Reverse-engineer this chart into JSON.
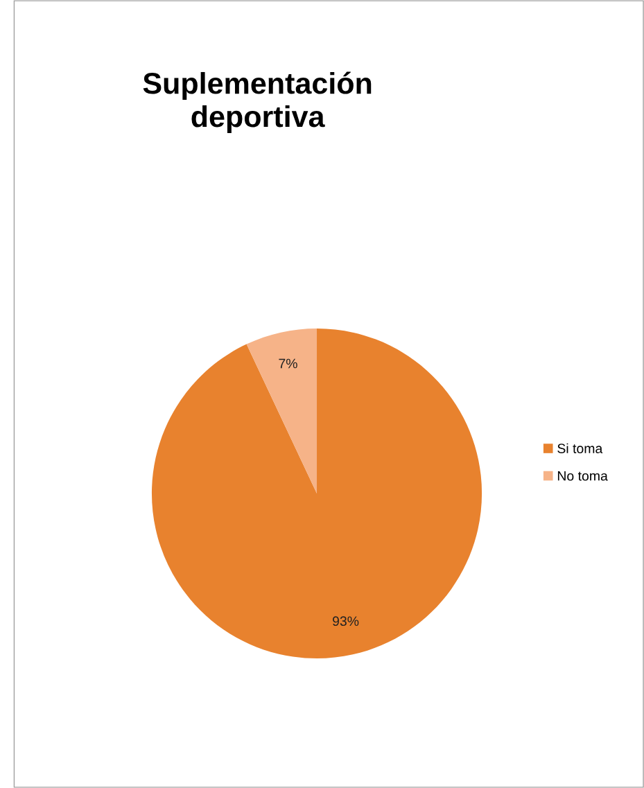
{
  "chart_data": {
    "type": "pie",
    "title": "Suplementación\ndeportiva",
    "categories": [
      "Si toma",
      "No toma"
    ],
    "values": [
      93,
      7
    ],
    "value_labels": [
      "93%",
      "7%"
    ],
    "colors": [
      "#e8822e",
      "#f6b388"
    ],
    "legend": "right"
  }
}
